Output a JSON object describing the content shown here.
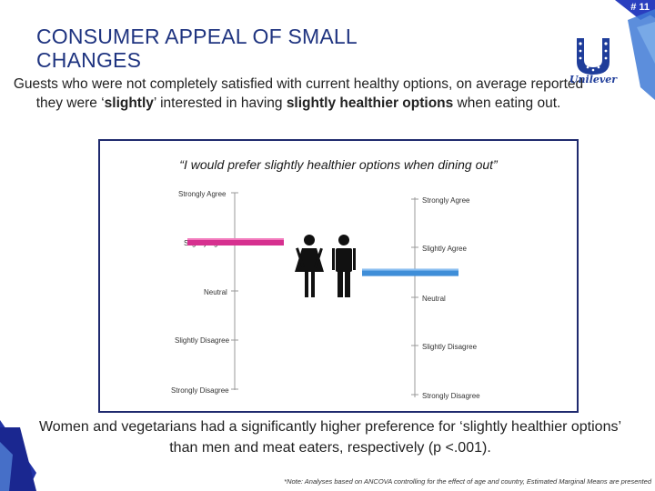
{
  "slide": {
    "number": "# 11"
  },
  "header": {
    "title_line1": "CONSUMER APPEAL OF SMALL",
    "title_line2": "CHANGES",
    "subtitle_part1": "Guests who were not completely satisfied with current healthy options, on average reported they were ‘",
    "subtitle_bold1": "slightly",
    "subtitle_part2": "’ interested in having ",
    "subtitle_bold2": "slightly healthier options",
    "subtitle_part3": " when eating out."
  },
  "logo": {
    "text": "Unilever"
  },
  "chart": {
    "quote": "“I would prefer slightly healthier options when dining out”",
    "left_scale": [
      "Strongly Agree",
      "Slightly Agree",
      "Neutral",
      "Slightly Disagree",
      "Strongly Disagree"
    ],
    "right_scale": [
      "Strongly Agree",
      "Slightly Agree",
      "Neutral",
      "Slightly Disagree",
      "Strongly Disagree"
    ],
    "colors": {
      "women": "#d6308f",
      "men": "#3f8ed8",
      "axis": "#888888"
    }
  },
  "chart_data": {
    "type": "bar",
    "title": "“I would prefer slightly healthier options when dining out”",
    "scale": [
      "Strongly Disagree",
      "Slightly Disagree",
      "Neutral",
      "Slightly Agree",
      "Strongly Agree"
    ],
    "scale_values": [
      1,
      2,
      3,
      4,
      5
    ],
    "series": [
      {
        "name": "Women",
        "value": 4.0
      },
      {
        "name": "Men",
        "value": 3.5
      }
    ],
    "ylim": [
      1,
      5
    ]
  },
  "footer": {
    "finding": "Women and vegetarians had a significantly higher preference for ‘slightly healthier options’ than men and meat eaters, respectively (p <.001).",
    "note": "*Note: Analyses based on ANCOVA controlling for the effect of age and country, Estimated Marginal Means are presented"
  }
}
